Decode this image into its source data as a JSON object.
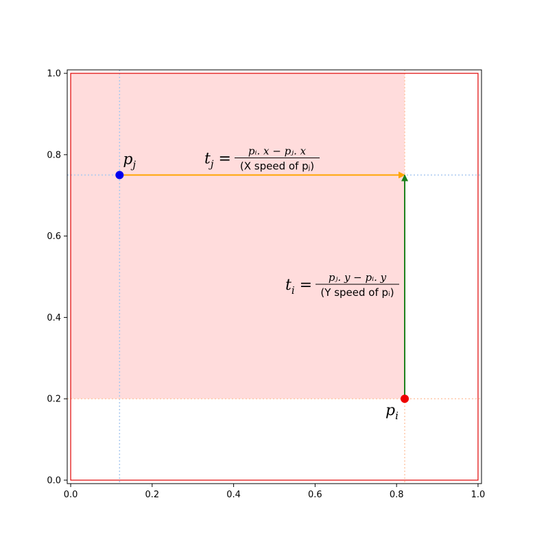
{
  "chart_data": {
    "type": "scatter",
    "xlim": [
      0.0,
      1.0
    ],
    "ylim": [
      0.0,
      1.0
    ],
    "x_ticks": [
      "0.0",
      "0.2",
      "0.4",
      "0.6",
      "0.8",
      "1.0"
    ],
    "y_ticks": [
      "0.0",
      "0.2",
      "0.4",
      "0.6",
      "0.8",
      "1.0"
    ],
    "grid": false,
    "boundary_box": {
      "x0": 0.0,
      "y0": 0.0,
      "x1": 1.0,
      "y1": 1.0,
      "color": "#e00000"
    },
    "shaded_region": {
      "x0": 0.0,
      "x1": 0.82,
      "y0": 0.2,
      "y1": 1.0,
      "color": "#ffdcdc"
    },
    "points": [
      {
        "id": "pj",
        "label": "p",
        "subscript": "j",
        "x": 0.12,
        "y": 0.75,
        "color": "#0000ee"
      },
      {
        "id": "pi",
        "label": "p",
        "subscript": "i",
        "x": 0.82,
        "y": 0.2,
        "color": "#ee0000"
      }
    ],
    "arrows": [
      {
        "id": "tj",
        "from": [
          0.12,
          0.75
        ],
        "to": [
          0.82,
          0.75
        ],
        "color": "#ffa500"
      },
      {
        "id": "ti",
        "from": [
          0.82,
          0.2
        ],
        "to": [
          0.82,
          0.75
        ],
        "color": "#1a801a"
      }
    ],
    "guide_colors": {
      "pj": "#a8c8f0",
      "pi": "#ffc8a8"
    },
    "annotations": {
      "tj": {
        "lhs": "t",
        "lhs_sub": "j",
        "numerator": "pᵢ. x − pⱼ. x",
        "denominator": "(X speed of pⱼ)"
      },
      "ti": {
        "lhs": "t",
        "lhs_sub": "i",
        "numerator": "pⱼ. y − pᵢ. y",
        "denominator": "(Y speed of pᵢ)"
      }
    }
  }
}
